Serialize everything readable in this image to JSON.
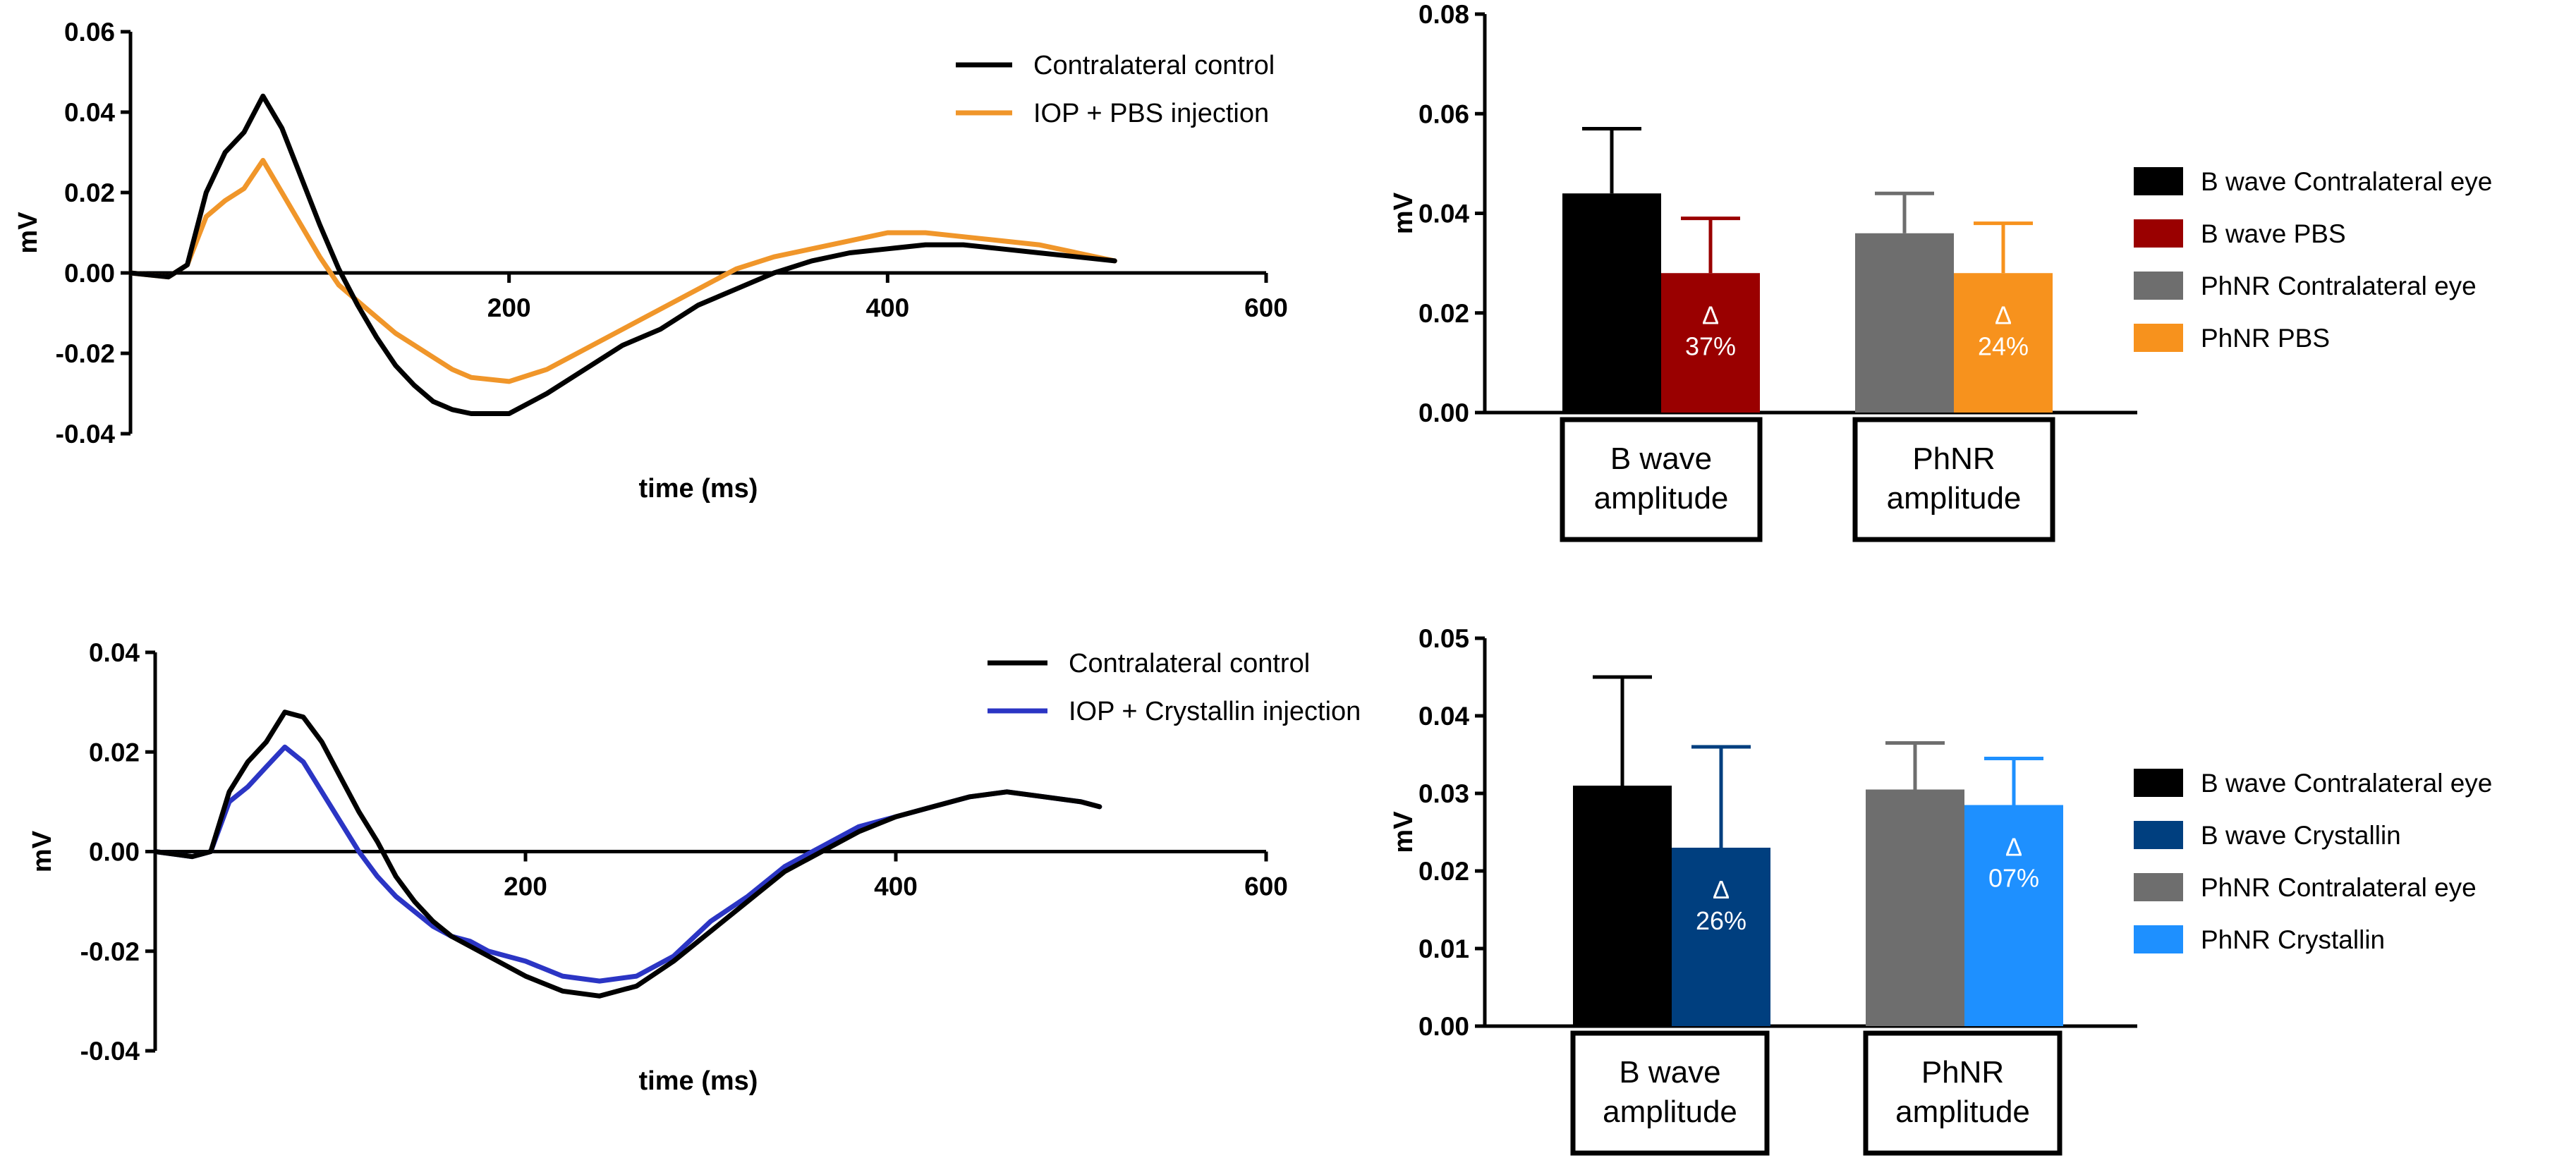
{
  "chart_data": [
    {
      "type": "line",
      "xlabel": "time (ms)",
      "ylabel": "mV",
      "xlim": [
        0,
        600
      ],
      "ylim": [
        -0.04,
        0.06
      ],
      "xticks": [
        200,
        400,
        600
      ],
      "xtick_labels": [
        "200",
        "400",
        "600"
      ],
      "yticks": [
        -0.04,
        -0.02,
        0.0,
        0.02,
        0.04,
        0.06
      ],
      "ytick_labels": [
        "-0.04",
        "-0.02",
        "0.00",
        "0.02",
        "0.04",
        "0.06"
      ],
      "legend": "top-right",
      "series": [
        {
          "name": "Contralateral control",
          "color": "#000000",
          "x": [
            0,
            20,
            30,
            40,
            50,
            60,
            70,
            80,
            90,
            100,
            110,
            120,
            130,
            140,
            150,
            160,
            170,
            180,
            200,
            220,
            240,
            260,
            280,
            300,
            320,
            340,
            360,
            380,
            400,
            420,
            440,
            460,
            480,
            500,
            520
          ],
          "y": [
            0,
            -0.001,
            0.002,
            0.02,
            0.03,
            0.035,
            0.044,
            0.036,
            0.024,
            0.012,
            0.001,
            -0.008,
            -0.016,
            -0.023,
            -0.028,
            -0.032,
            -0.034,
            -0.035,
            -0.035,
            -0.03,
            -0.024,
            -0.018,
            -0.014,
            -0.008,
            -0.004,
            0.0,
            0.003,
            0.005,
            0.006,
            0.007,
            0.007,
            0.006,
            0.005,
            0.004,
            0.003
          ]
        },
        {
          "name": "IOP + PBS injection",
          "color": "#f0962a",
          "x": [
            0,
            20,
            30,
            40,
            50,
            60,
            70,
            80,
            90,
            100,
            110,
            120,
            130,
            140,
            150,
            160,
            170,
            180,
            200,
            220,
            240,
            260,
            280,
            300,
            320,
            340,
            360,
            380,
            400,
            420,
            440,
            460,
            480,
            500,
            520
          ],
          "y": [
            0,
            -0.001,
            0.002,
            0.014,
            0.018,
            0.021,
            0.028,
            0.02,
            0.012,
            0.004,
            -0.003,
            -0.007,
            -0.011,
            -0.015,
            -0.018,
            -0.021,
            -0.024,
            -0.026,
            -0.027,
            -0.024,
            -0.019,
            -0.014,
            -0.009,
            -0.004,
            0.001,
            0.004,
            0.006,
            0.008,
            0.01,
            0.01,
            0.009,
            0.008,
            0.007,
            0.005,
            0.003
          ]
        }
      ]
    },
    {
      "type": "bar",
      "ylabel": "mV",
      "ylim": [
        0,
        0.08
      ],
      "yticks": [
        0.0,
        0.02,
        0.04,
        0.06,
        0.08
      ],
      "ytick_labels": [
        "0.00",
        "0.02",
        "0.04",
        "0.06",
        "0.08"
      ],
      "groups": [
        "B wave\namplitude",
        "PhNR\namplitude"
      ],
      "legend": "right",
      "series": [
        {
          "name": "B wave Contralateral eye",
          "color": "#000000",
          "value": 0.044,
          "error": 0.013,
          "group": 0,
          "annotation": ""
        },
        {
          "name": "B wave PBS",
          "color": "#9a0000",
          "value": 0.028,
          "error": 0.011,
          "group": 0,
          "annotation": "Δ\n37%"
        },
        {
          "name": "PhNR Contralateral eye",
          "color": "#6e6e6e",
          "value": 0.036,
          "error": 0.008,
          "group": 1,
          "annotation": ""
        },
        {
          "name": "PhNR PBS",
          "color": "#f7921d",
          "value": 0.028,
          "error": 0.01,
          "group": 1,
          "annotation": "Δ\n24%"
        }
      ]
    },
    {
      "type": "line",
      "xlabel": "time (ms)",
      "ylabel": "mV",
      "xlim": [
        0,
        600
      ],
      "ylim": [
        -0.04,
        0.04
      ],
      "xticks": [
        200,
        400,
        600
      ],
      "xtick_labels": [
        "200",
        "400",
        "600"
      ],
      "yticks": [
        -0.04,
        -0.02,
        0.0,
        0.02,
        0.04
      ],
      "ytick_labels": [
        "-0.04",
        "-0.02",
        "0.00",
        "0.02",
        "0.04"
      ],
      "legend": "top-right",
      "series": [
        {
          "name": "Contralateral control",
          "color": "#000000",
          "x": [
            0,
            20,
            30,
            40,
            50,
            60,
            70,
            80,
            90,
            100,
            110,
            120,
            130,
            140,
            150,
            160,
            170,
            180,
            200,
            220,
            240,
            260,
            280,
            300,
            320,
            340,
            360,
            380,
            400,
            420,
            440,
            460,
            480,
            500,
            510
          ],
          "y": [
            0,
            -0.001,
            0.0,
            0.012,
            0.018,
            0.022,
            0.028,
            0.027,
            0.022,
            0.015,
            0.008,
            0.002,
            -0.005,
            -0.01,
            -0.014,
            -0.017,
            -0.019,
            -0.021,
            -0.025,
            -0.028,
            -0.029,
            -0.027,
            -0.022,
            -0.016,
            -0.01,
            -0.004,
            0.0,
            0.004,
            0.007,
            0.009,
            0.011,
            0.012,
            0.011,
            0.01,
            0.009
          ]
        },
        {
          "name": "IOP + Crystallin injection",
          "color": "#2b35c4",
          "x": [
            0,
            20,
            30,
            40,
            50,
            60,
            70,
            80,
            90,
            100,
            110,
            120,
            130,
            140,
            150,
            160,
            170,
            180,
            200,
            220,
            240,
            260,
            280,
            300,
            320,
            340,
            360,
            380,
            400,
            420,
            440,
            460,
            480,
            500,
            510
          ],
          "y": [
            0,
            -0.001,
            0.0,
            0.01,
            0.013,
            0.017,
            0.021,
            0.018,
            0.012,
            0.006,
            0.0,
            -0.005,
            -0.009,
            -0.012,
            -0.015,
            -0.017,
            -0.018,
            -0.02,
            -0.022,
            -0.025,
            -0.026,
            -0.025,
            -0.021,
            -0.014,
            -0.009,
            -0.003,
            0.001,
            0.005,
            0.007,
            0.009,
            0.011,
            0.012,
            0.011,
            0.01,
            0.009
          ]
        }
      ]
    },
    {
      "type": "bar",
      "ylabel": "mV",
      "ylim": [
        0,
        0.05
      ],
      "yticks": [
        0.0,
        0.01,
        0.02,
        0.03,
        0.04,
        0.05
      ],
      "ytick_labels": [
        "0.00",
        "0.01",
        "0.02",
        "0.03",
        "0.04",
        "0.05"
      ],
      "groups": [
        "B wave\namplitude",
        "PhNR\namplitude"
      ],
      "legend": "right",
      "series": [
        {
          "name": "B wave Contralateral eye",
          "color": "#000000",
          "value": 0.031,
          "error": 0.014,
          "group": 0,
          "annotation": ""
        },
        {
          "name": "B wave Crystallin",
          "color": "#003f7f",
          "value": 0.023,
          "error": 0.013,
          "group": 0,
          "annotation": "Δ\n26%"
        },
        {
          "name": "PhNR Contralateral eye",
          "color": "#6e6e6e",
          "value": 0.0305,
          "error": 0.006,
          "group": 1,
          "annotation": ""
        },
        {
          "name": "PhNR Crystallin",
          "color": "#1e90ff",
          "value": 0.0285,
          "error": 0.006,
          "group": 1,
          "annotation": "Δ\n07%"
        }
      ]
    }
  ]
}
